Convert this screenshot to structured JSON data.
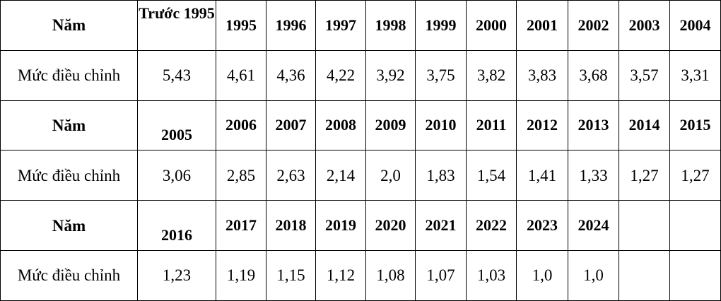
{
  "sections": [
    {
      "header": "Năm",
      "label": "Mức điều chỉnh",
      "years": [
        "Trước 1995",
        "1995",
        "1996",
        "1997",
        "1998",
        "1999",
        "2000",
        "2001",
        "2002",
        "2003",
        "2004"
      ],
      "values": [
        "5,43",
        "4,61",
        "4,36",
        "4,22",
        "3,92",
        "3,75",
        "3,82",
        "3,83",
        "3,68",
        "3,57",
        "3,31"
      ]
    },
    {
      "header": "Năm",
      "label": "Mức điều chỉnh",
      "years": [
        "2005",
        "2006",
        "2007",
        "2008",
        "2009",
        "2010",
        "2011",
        "2012",
        "2013",
        "2014",
        "2015"
      ],
      "values": [
        "3,06",
        "2,85",
        "2,63",
        "2,14",
        "2,0",
        "1,83",
        "1,54",
        "1,41",
        "1,33",
        "1,27",
        "1,27"
      ]
    },
    {
      "header": "Năm",
      "label": "Mức điều chỉnh",
      "years": [
        "2016",
        "2017",
        "2018",
        "2019",
        "2020",
        "2021",
        "2022",
        "2023",
        "2024",
        "",
        ""
      ],
      "values": [
        "1,23",
        "1,19",
        "1,15",
        "1,12",
        "1,08",
        "1,07",
        "1,03",
        "1,0",
        "1,0",
        "",
        ""
      ]
    }
  ]
}
